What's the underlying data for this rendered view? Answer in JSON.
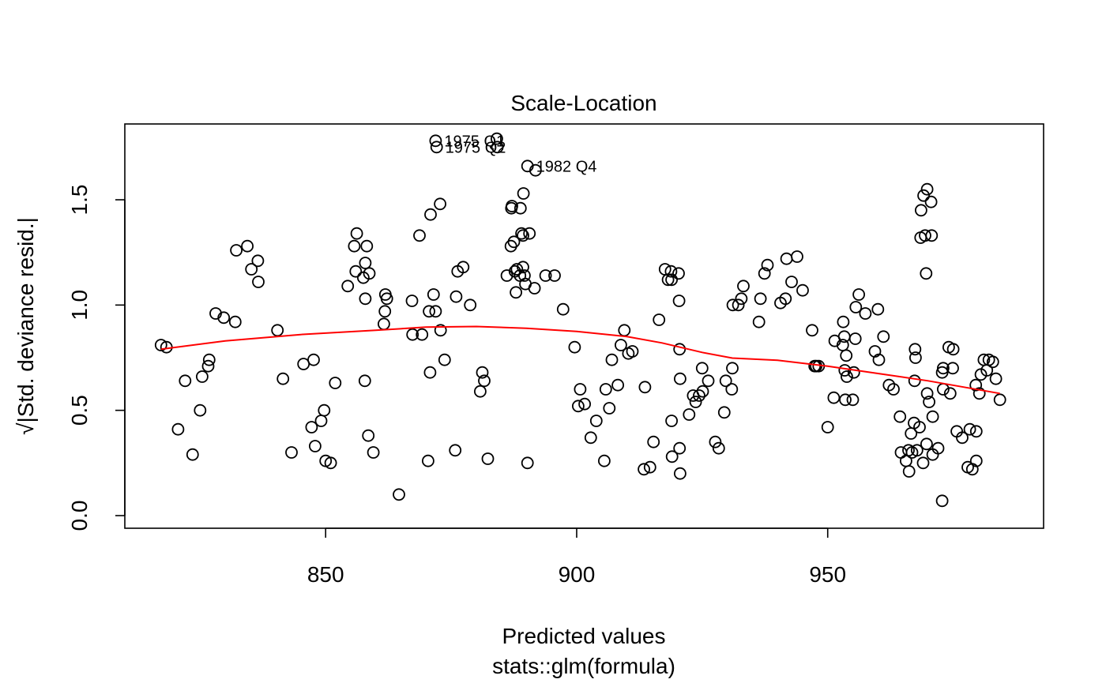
{
  "chart_data": {
    "type": "scatter",
    "title": "Scale-Location",
    "xlabel": "Predicted values",
    "subtitle": "stats::glm(formula)",
    "ylabel_prefix": "√",
    "ylabel": "|Std. deviance resid.|",
    "xlim": [
      810,
      993
    ],
    "ylim": [
      -0.06,
      1.86
    ],
    "x_ticks": [
      850,
      900,
      950
    ],
    "y_ticks": [
      0.0,
      0.5,
      1.0,
      1.5
    ],
    "x_tick_labels": [
      "850",
      "900",
      "950"
    ],
    "y_tick_labels": [
      "0.0",
      "0.5",
      "1.0",
      "1.5"
    ],
    "grid": false,
    "colors": {
      "points": "#000000",
      "smooth": "#ff0000"
    },
    "points": [
      [
        817.2,
        0.81
      ],
      [
        818.3,
        0.8
      ],
      [
        820.6,
        0.41
      ],
      [
        822.0,
        0.64
      ],
      [
        823.5,
        0.29
      ],
      [
        825.0,
        0.5
      ],
      [
        825.4,
        0.66
      ],
      [
        826.6,
        0.71
      ],
      [
        826.8,
        0.74
      ],
      [
        828.1,
        0.96
      ],
      [
        829.7,
        0.94
      ],
      [
        832.0,
        0.92
      ],
      [
        832.2,
        1.26
      ],
      [
        834.4,
        1.28
      ],
      [
        835.2,
        1.17
      ],
      [
        836.5,
        1.21
      ],
      [
        836.6,
        1.11
      ],
      [
        840.4,
        0.88
      ],
      [
        841.5,
        0.65
      ],
      [
        843.2,
        0.3
      ],
      [
        845.6,
        0.72
      ],
      [
        847.2,
        0.42
      ],
      [
        847.6,
        0.74
      ],
      [
        847.9,
        0.33
      ],
      [
        849.1,
        0.45
      ],
      [
        849.7,
        0.5
      ],
      [
        850.0,
        0.26
      ],
      [
        851.0,
        0.25
      ],
      [
        851.9,
        0.63
      ],
      [
        854.4,
        1.09
      ],
      [
        855.7,
        1.28
      ],
      [
        856.0,
        1.16
      ],
      [
        856.2,
        1.34
      ],
      [
        857.5,
        1.13
      ],
      [
        857.8,
        0.64
      ],
      [
        857.9,
        1.03
      ],
      [
        857.9,
        1.2
      ],
      [
        858.2,
        1.28
      ],
      [
        858.5,
        0.38
      ],
      [
        858.7,
        1.15
      ],
      [
        859.5,
        0.3
      ],
      [
        861.6,
        0.91
      ],
      [
        861.8,
        0.97
      ],
      [
        861.9,
        1.05
      ],
      [
        862.2,
        1.03
      ],
      [
        864.6,
        0.1
      ],
      [
        867.2,
        1.02
      ],
      [
        867.3,
        0.86
      ],
      [
        868.7,
        1.33
      ],
      [
        869.2,
        0.86
      ],
      [
        870.4,
        0.26
      ],
      [
        870.6,
        0.97
      ],
      [
        870.8,
        0.68
      ],
      [
        870.9,
        1.43
      ],
      [
        871.5,
        1.05
      ],
      [
        871.9,
        0.97
      ],
      [
        871.9,
        1.78
      ],
      [
        872.1,
        1.75
      ],
      [
        872.8,
        1.48
      ],
      [
        872.9,
        0.88
      ],
      [
        873.7,
        0.74
      ],
      [
        875.8,
        0.31
      ],
      [
        876.0,
        1.04
      ],
      [
        876.3,
        1.16
      ],
      [
        877.4,
        1.18
      ],
      [
        878.8,
        1.0
      ],
      [
        880.8,
        0.59
      ],
      [
        881.2,
        0.68
      ],
      [
        881.6,
        0.64
      ],
      [
        882.3,
        0.27
      ],
      [
        884.1,
        1.79
      ],
      [
        884.2,
        1.75
      ],
      [
        886.1,
        1.14
      ],
      [
        886.9,
        1.28
      ],
      [
        887.0,
        1.46
      ],
      [
        887.1,
        1.47
      ],
      [
        887.5,
        1.3
      ],
      [
        887.7,
        1.16
      ],
      [
        887.9,
        1.06
      ],
      [
        888.1,
        1.17
      ],
      [
        888.7,
        1.14
      ],
      [
        888.8,
        1.46
      ],
      [
        889.0,
        1.34
      ],
      [
        889.3,
        1.33
      ],
      [
        889.3,
        1.18
      ],
      [
        889.4,
        1.53
      ],
      [
        889.6,
        1.14
      ],
      [
        889.8,
        1.1
      ],
      [
        890.2,
        0.25
      ],
      [
        890.2,
        1.66
      ],
      [
        890.6,
        1.34
      ],
      [
        891.6,
        1.08
      ],
      [
        891.8,
        1.64
      ],
      [
        893.8,
        1.14
      ],
      [
        895.6,
        1.14
      ],
      [
        897.3,
        0.98
      ],
      [
        899.6,
        0.8
      ],
      [
        900.3,
        0.52
      ],
      [
        900.7,
        0.6
      ],
      [
        901.6,
        0.53
      ],
      [
        902.8,
        0.37
      ],
      [
        903.9,
        0.45
      ],
      [
        905.5,
        0.26
      ],
      [
        905.8,
        0.6
      ],
      [
        906.5,
        0.51
      ],
      [
        907.0,
        0.74
      ],
      [
        908.2,
        0.62
      ],
      [
        908.8,
        0.81
      ],
      [
        909.5,
        0.88
      ],
      [
        910.3,
        0.77
      ],
      [
        911.1,
        0.78
      ],
      [
        913.4,
        0.22
      ],
      [
        913.6,
        0.61
      ],
      [
        914.6,
        0.23
      ],
      [
        915.3,
        0.35
      ],
      [
        916.4,
        0.93
      ],
      [
        917.6,
        1.17
      ],
      [
        918.2,
        1.12
      ],
      [
        918.8,
        1.16
      ],
      [
        918.9,
        1.12
      ],
      [
        918.9,
        0.45
      ],
      [
        919.0,
        0.28
      ],
      [
        920.3,
        1.15
      ],
      [
        920.4,
        1.02
      ],
      [
        920.5,
        0.79
      ],
      [
        920.5,
        0.32
      ],
      [
        920.6,
        0.65
      ],
      [
        920.6,
        0.2
      ],
      [
        922.4,
        0.48
      ],
      [
        923.2,
        0.57
      ],
      [
        923.7,
        0.54
      ],
      [
        924.4,
        0.57
      ],
      [
        925.0,
        0.7
      ],
      [
        925.1,
        0.59
      ],
      [
        926.2,
        0.64
      ],
      [
        927.6,
        0.35
      ],
      [
        928.3,
        0.32
      ],
      [
        929.4,
        0.49
      ],
      [
        929.7,
        0.64
      ],
      [
        930.9,
        0.6
      ],
      [
        931.0,
        0.7
      ],
      [
        931.1,
        1.0
      ],
      [
        932.2,
        1.0
      ],
      [
        932.8,
        1.03
      ],
      [
        933.2,
        1.09
      ],
      [
        936.3,
        0.92
      ],
      [
        936.6,
        1.03
      ],
      [
        937.4,
        1.15
      ],
      [
        938.0,
        1.19
      ],
      [
        940.6,
        1.01
      ],
      [
        941.6,
        1.03
      ],
      [
        941.8,
        1.22
      ],
      [
        942.8,
        1.11
      ],
      [
        943.9,
        1.23
      ],
      [
        945.0,
        1.07
      ],
      [
        946.9,
        0.88
      ],
      [
        947.4,
        0.71
      ],
      [
        947.7,
        0.71
      ],
      [
        948.2,
        0.71
      ],
      [
        950.0,
        0.42
      ],
      [
        951.2,
        0.56
      ],
      [
        951.4,
        0.83
      ],
      [
        953.0,
        0.81
      ],
      [
        953.1,
        0.92
      ],
      [
        953.3,
        0.85
      ],
      [
        953.4,
        0.69
      ],
      [
        953.5,
        0.55
      ],
      [
        953.7,
        0.76
      ],
      [
        953.8,
        0.66
      ],
      [
        955.0,
        0.55
      ],
      [
        955.2,
        0.68
      ],
      [
        955.5,
        0.84
      ],
      [
        955.6,
        0.99
      ],
      [
        956.2,
        1.05
      ],
      [
        957.5,
        0.96
      ],
      [
        959.4,
        0.78
      ],
      [
        960.0,
        0.98
      ],
      [
        960.2,
        0.74
      ],
      [
        961.1,
        0.85
      ],
      [
        962.2,
        0.62
      ],
      [
        963.1,
        0.6
      ],
      [
        964.4,
        0.47
      ],
      [
        964.6,
        0.3
      ],
      [
        965.6,
        0.26
      ],
      [
        966.1,
        0.31
      ],
      [
        966.2,
        0.21
      ],
      [
        966.6,
        0.39
      ],
      [
        966.8,
        0.3
      ],
      [
        967.2,
        0.44
      ],
      [
        967.3,
        0.64
      ],
      [
        967.4,
        0.79
      ],
      [
        967.5,
        0.75
      ],
      [
        967.8,
        0.31
      ],
      [
        968.3,
        0.42
      ],
      [
        968.5,
        1.32
      ],
      [
        968.6,
        1.45
      ],
      [
        969.0,
        0.25
      ],
      [
        969.1,
        1.52
      ],
      [
        969.4,
        1.33
      ],
      [
        969.6,
        1.15
      ],
      [
        969.7,
        0.34
      ],
      [
        969.8,
        1.55
      ],
      [
        969.8,
        0.58
      ],
      [
        970.2,
        0.54
      ],
      [
        970.6,
        1.49
      ],
      [
        970.7,
        1.33
      ],
      [
        970.9,
        0.29
      ],
      [
        970.9,
        0.47
      ],
      [
        972.0,
        0.32
      ],
      [
        972.8,
        0.68
      ],
      [
        972.8,
        0.07
      ],
      [
        973.0,
        0.7
      ],
      [
        973.0,
        0.6
      ],
      [
        974.1,
        0.8
      ],
      [
        974.4,
        0.58
      ],
      [
        974.9,
        0.7
      ],
      [
        975.0,
        0.79
      ],
      [
        975.7,
        0.4
      ],
      [
        976.8,
        0.37
      ],
      [
        977.9,
        0.23
      ],
      [
        978.3,
        0.41
      ],
      [
        978.8,
        0.22
      ],
      [
        979.5,
        0.62
      ],
      [
        979.6,
        0.26
      ],
      [
        979.6,
        0.4
      ],
      [
        980.2,
        0.58
      ],
      [
        980.5,
        0.67
      ],
      [
        981.1,
        0.74
      ],
      [
        981.7,
        0.69
      ],
      [
        982.1,
        0.74
      ],
      [
        982.9,
        0.73
      ],
      [
        983.5,
        0.65
      ],
      [
        984.3,
        0.55
      ]
    ],
    "smooth": [
      [
        817.2,
        0.79
      ],
      [
        830,
        0.83
      ],
      [
        845,
        0.86
      ],
      [
        860,
        0.88
      ],
      [
        870,
        0.895
      ],
      [
        880,
        0.898
      ],
      [
        890,
        0.89
      ],
      [
        900,
        0.875
      ],
      [
        910,
        0.85
      ],
      [
        917,
        0.82
      ],
      [
        925,
        0.775
      ],
      [
        931,
        0.748
      ],
      [
        940,
        0.738
      ],
      [
        950,
        0.71
      ],
      [
        960,
        0.675
      ],
      [
        970,
        0.64
      ],
      [
        984.3,
        0.58
      ]
    ],
    "point_labels": [
      {
        "text": "1975 Q1",
        "x": 871.9,
        "y": 1.78
      },
      {
        "text": "1975 Q2",
        "x": 872.1,
        "y": 1.75
      },
      {
        "text": "1982 Q4",
        "x": 890.2,
        "y": 1.66
      }
    ]
  }
}
